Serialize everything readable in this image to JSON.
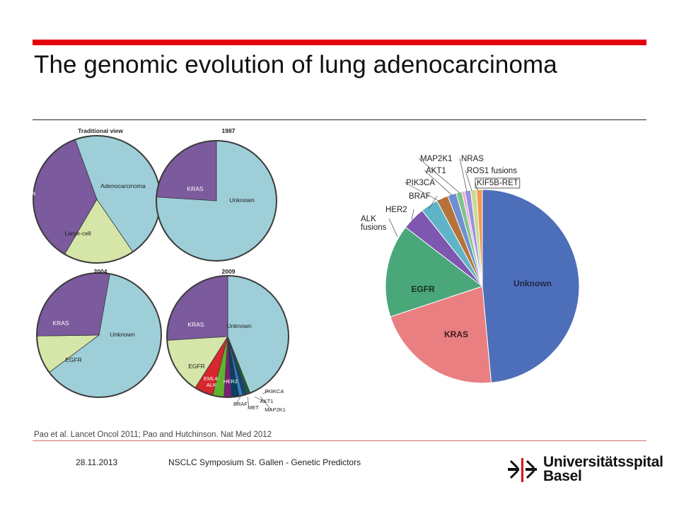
{
  "slide": {
    "title": "The genomic evolution of lung adenocarcinoma",
    "citation": "Pao et al. Lancet Oncol 2011; Pao and Hutchinson. Nat Med 2012",
    "footer_date": "28.11.2013",
    "footer_event": "NSCLC Symposium St. Gallen - Genetic Predictors",
    "logo_line1": "Universitätsspital",
    "logo_line2": "Basel"
  },
  "colors": {
    "accent_red": "#e3000f",
    "unknown_teal": "#9ecfd9",
    "purple": "#7b5a9e",
    "light_green": "#d5e6a8",
    "blue_unknown": "#4d6eb9",
    "pink_kras": "#ea7f82",
    "green_egfr": "#4aa77a"
  },
  "chart_data": [
    {
      "type": "pie",
      "title": "Traditional view",
      "categories": [
        "Adenocarcinoma",
        "Large-cell",
        "Squamous"
      ],
      "values": [
        46,
        18,
        36
      ],
      "colors": [
        "#9ecfd9",
        "#d5e6a8",
        "#7b5a9e"
      ],
      "labels": [
        "Adenocarcinoma",
        "Large-cell",
        "Squamous"
      ]
    },
    {
      "type": "pie",
      "title": "1987",
      "categories": [
        "Unknown",
        "KRAS"
      ],
      "values": [
        76,
        24
      ],
      "colors": [
        "#9ecfd9",
        "#7b5a9e"
      ],
      "labels": [
        "Unknown",
        "KRAS"
      ]
    },
    {
      "type": "pie",
      "title": "2004",
      "categories": [
        "Unknown",
        "EGFR",
        "KRAS"
      ],
      "values": [
        62,
        10,
        28
      ],
      "colors": [
        "#9ecfd9",
        "#d5e6a8",
        "#7b5a9e"
      ],
      "labels": [
        "Unknown",
        "EGFR",
        "KRAS"
      ]
    },
    {
      "type": "pie",
      "title": "2009",
      "categories": [
        "Unknown",
        "PI3KCA",
        "MAP2K1",
        "AKT1",
        "MET",
        "BRAF",
        "HER2",
        "EML4-ALK",
        "EGFR",
        "KRAS"
      ],
      "values": [
        44,
        1,
        1,
        1,
        2,
        2,
        3,
        5,
        15,
        26
      ],
      "colors": [
        "#9ecfd9",
        "#1a5f34",
        "#173f86",
        "#2f86b4",
        "#0a3f66",
        "#7d1f78",
        "#62b32e",
        "#d7262d",
        "#d5e6a8",
        "#7b5a9e"
      ],
      "labels": [
        "Unknown",
        "PI3KCA",
        "MAP2K1",
        "AKT1",
        "MET",
        "BRAF",
        "HER2",
        "EML4-\nALK",
        "EGFR",
        "KRAS"
      ]
    },
    {
      "type": "pie",
      "title": "",
      "categories": [
        "Unknown",
        "KRAS",
        "EGFR",
        "ALK fusions",
        "HER2",
        "BRAF",
        "PIK3CA",
        "AKT1",
        "MAP2K1",
        "NRAS",
        "ROS1 fusions",
        "KIF5B-RET"
      ],
      "values": [
        50,
        22,
        16,
        4,
        3,
        2,
        1.5,
        1,
        0.5,
        1,
        1,
        1
      ],
      "colors": [
        "#4d6eb9",
        "#ea7f82",
        "#4aa77a",
        "#7e57b0",
        "#5fb4c8",
        "#b5733a",
        "#6f8fd1",
        "#7fc48d",
        "#e7a9d0",
        "#9b8fe0",
        "#c7dc91",
        "#f29a55"
      ],
      "labels": [
        "Unknown",
        "KRAS",
        "EGFR",
        "ALK\nfusions",
        "HER2",
        "BRAF",
        "PIK3CA",
        "AKT1",
        "MAP2K1",
        "NRAS",
        "ROS1 fusions",
        "KIF5B-RET"
      ]
    }
  ]
}
